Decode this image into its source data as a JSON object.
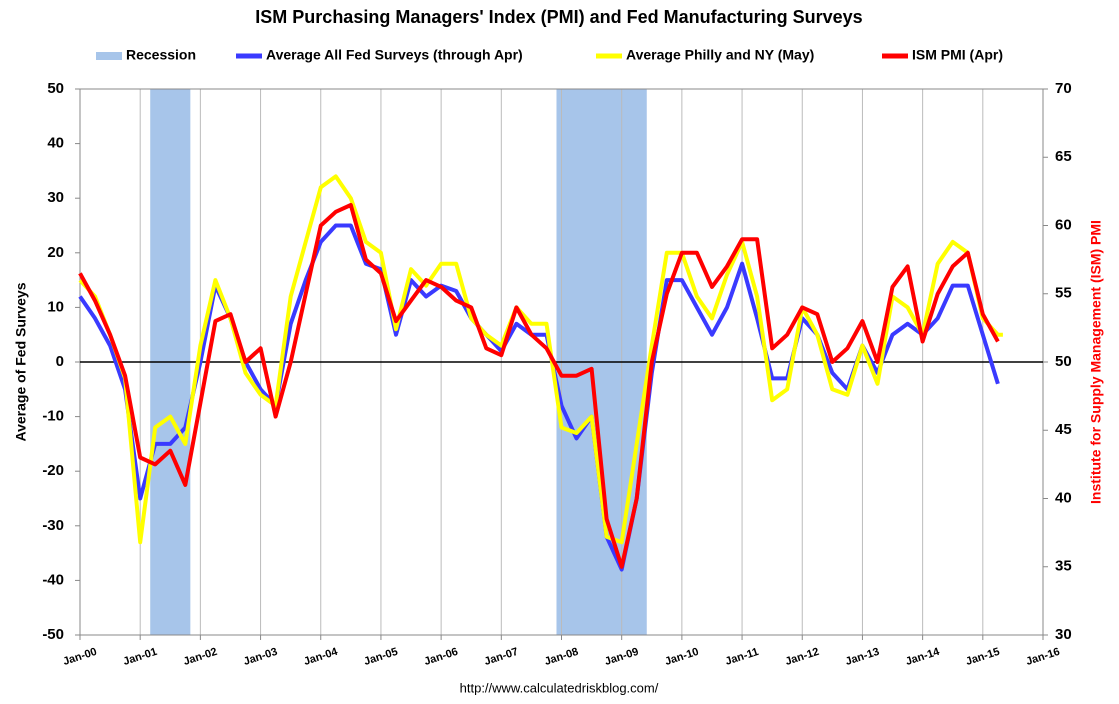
{
  "chart_data": {
    "type": "line",
    "title": "ISM Purchasing Managers' Index (PMI) and Fed Manufacturing Surveys",
    "ylabel": "Average of Fed Surveys",
    "y2label": "Institute for Supply Management (ISM) PMI",
    "y2label_color": "#ff0000",
    "source": "http://www.calculatedriskblog.com/",
    "x": [
      "2000-01",
      "2000-04",
      "2000-07",
      "2000-10",
      "2001-01",
      "2001-04",
      "2001-07",
      "2001-10",
      "2002-01",
      "2002-04",
      "2002-07",
      "2002-10",
      "2003-01",
      "2003-04",
      "2003-07",
      "2003-10",
      "2004-01",
      "2004-04",
      "2004-07",
      "2004-10",
      "2005-01",
      "2005-04",
      "2005-07",
      "2005-10",
      "2006-01",
      "2006-04",
      "2006-07",
      "2006-10",
      "2007-01",
      "2007-04",
      "2007-07",
      "2007-10",
      "2008-01",
      "2008-04",
      "2008-07",
      "2008-10",
      "2009-01",
      "2009-04",
      "2009-07",
      "2009-10",
      "2010-01",
      "2010-04",
      "2010-07",
      "2010-10",
      "2011-01",
      "2011-04",
      "2011-07",
      "2011-10",
      "2012-01",
      "2012-04",
      "2012-07",
      "2012-10",
      "2013-01",
      "2013-04",
      "2013-07",
      "2013-10",
      "2014-01",
      "2014-04",
      "2014-07",
      "2014-10",
      "2015-01",
      "2015-04",
      "2015-05"
    ],
    "xlim": [
      "2000-01",
      "2016-01"
    ],
    "xticks": [
      {
        "value": "2000-01",
        "label": "Jan-00"
      },
      {
        "value": "2001-01",
        "label": "Jan-01"
      },
      {
        "value": "2002-01",
        "label": "Jan-02"
      },
      {
        "value": "2003-01",
        "label": "Jan-03"
      },
      {
        "value": "2004-01",
        "label": "Jan-04"
      },
      {
        "value": "2005-01",
        "label": "Jan-05"
      },
      {
        "value": "2006-01",
        "label": "Jan-06"
      },
      {
        "value": "2007-01",
        "label": "Jan-07"
      },
      {
        "value": "2008-01",
        "label": "Jan-08"
      },
      {
        "value": "2009-01",
        "label": "Jan-09"
      },
      {
        "value": "2010-01",
        "label": "Jan-10"
      },
      {
        "value": "2011-01",
        "label": "Jan-11"
      },
      {
        "value": "2012-01",
        "label": "Jan-12"
      },
      {
        "value": "2013-01",
        "label": "Jan-13"
      },
      {
        "value": "2014-01",
        "label": "Jan-14"
      },
      {
        "value": "2015-01",
        "label": "Jan-15"
      },
      {
        "value": "2016-01",
        "label": "Jan-16"
      }
    ],
    "ylim": [
      -50,
      50
    ],
    "yticks": [
      -50,
      -40,
      -30,
      -20,
      -10,
      0,
      10,
      20,
      30,
      40,
      50
    ],
    "y2lim": [
      30,
      70
    ],
    "y2ticks": [
      30,
      35,
      40,
      45,
      50,
      55,
      60,
      65,
      70
    ],
    "reference_line": 0,
    "grid": "x",
    "recession": {
      "name": "Recession",
      "color": "#a7c5ea",
      "periods": [
        {
          "start": "2001-03",
          "end": "2001-11"
        },
        {
          "start": "2007-12",
          "end": "2009-06"
        }
      ]
    },
    "series": [
      {
        "name": "Average All Fed Surveys (through Apr)",
        "color": "#3a3aff",
        "values": [
          12,
          8,
          3,
          -5,
          -25,
          -15,
          -15,
          -12,
          0,
          14,
          8,
          0,
          -5,
          -8,
          7,
          15,
          22,
          25,
          25,
          18,
          17,
          5,
          15,
          12,
          14,
          13,
          8,
          5,
          2,
          7,
          5,
          5,
          -8,
          -14,
          -10,
          -32,
          -38,
          -25,
          -2,
          15,
          15,
          10,
          5,
          10,
          18,
          8,
          -3,
          -3,
          8,
          5,
          -2,
          -5,
          3,
          -2,
          5,
          7,
          5,
          8,
          14,
          14,
          5,
          -4,
          null
        ]
      },
      {
        "name": "Average Philly and NY (May)",
        "color": "#ffff00",
        "values": [
          15,
          12,
          5,
          -3,
          -33,
          -12,
          -10,
          -15,
          3,
          15,
          8,
          -2,
          -6,
          -8,
          12,
          22,
          32,
          34,
          30,
          22,
          20,
          6,
          17,
          14,
          18,
          18,
          8,
          5,
          3,
          10,
          7,
          7,
          -12,
          -13,
          -10,
          -32,
          -33,
          -15,
          3,
          20,
          20,
          12,
          8,
          16,
          22,
          12,
          -7,
          -5,
          10,
          5,
          -5,
          -6,
          3,
          -4,
          12,
          10,
          5,
          18,
          22,
          20,
          8,
          5,
          5
        ]
      },
      {
        "name": "ISM PMI (Apr)",
        "color": "#ff0000",
        "axis": "y2",
        "values": [
          56.5,
          54.5,
          52,
          49,
          43,
          42.5,
          43.5,
          41,
          47,
          53,
          53.5,
          50,
          51,
          46,
          50,
          55,
          60,
          61,
          61.5,
          57.5,
          56.5,
          53,
          54.5,
          56,
          55.5,
          54.5,
          54,
          51,
          50.5,
          54,
          52,
          51,
          49,
          49,
          49.5,
          38.5,
          35,
          40,
          50,
          55,
          58,
          58,
          55.5,
          57,
          59,
          59,
          51,
          52,
          54,
          53.5,
          50,
          51,
          53,
          50,
          55.5,
          57,
          51.5,
          55,
          57,
          58,
          53.5,
          51.5,
          null
        ]
      }
    ]
  }
}
